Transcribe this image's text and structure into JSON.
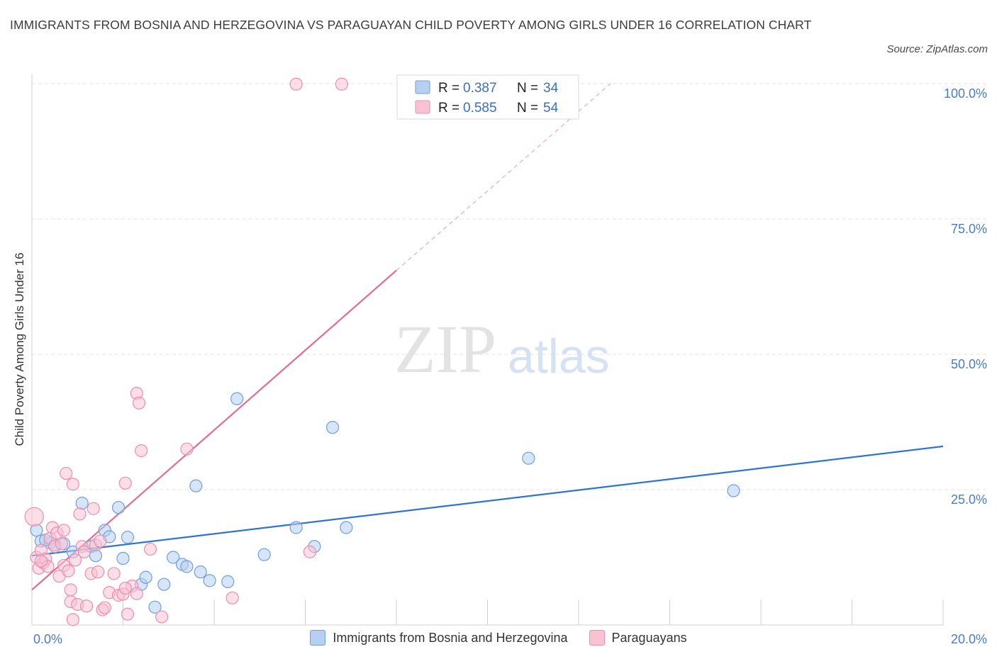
{
  "title": "IMMIGRANTS FROM BOSNIA AND HERZEGOVINA VS PARAGUAYAN CHILD POVERTY AMONG GIRLS UNDER 16 CORRELATION CHART",
  "source": "Source: ZipAtlas.com",
  "watermark": {
    "zip": "ZIP",
    "atlas": "atlas"
  },
  "colors": {
    "blue_fill": "#b7d0f2",
    "blue_stroke": "#6f9fdc",
    "blue_line": "#2f74d0",
    "pink_fill": "#f7c3d3",
    "pink_stroke": "#ea8fae",
    "pink_line": "#e56a93",
    "tick_text": "#4a7cc9",
    "grid": "#dfe3e8"
  },
  "stats": [
    {
      "r_label": "R =",
      "r_value": "0.387",
      "n_label": "N =",
      "n_value": "34"
    },
    {
      "r_label": "R =",
      "r_value": "0.585",
      "n_label": "N =",
      "n_value": "54"
    }
  ],
  "chart_data": {
    "type": "scatter",
    "title": "IMMIGRANTS FROM BOSNIA AND HERZEGOVINA VS PARAGUAYAN CHILD POVERTY AMONG GIRLS UNDER 16 CORRELATION CHART",
    "xlabel": "",
    "ylabel": "Child Poverty Among Girls Under 16",
    "xlim": [
      0,
      20
    ],
    "ylim": [
      0,
      100
    ],
    "x_ticks": [
      {
        "value": 0,
        "label": "0.0%"
      },
      {
        "value": 20,
        "label": "20.0%"
      }
    ],
    "y_ticks": [
      {
        "value": 25,
        "label": "25.0%"
      },
      {
        "value": 50,
        "label": "50.0%"
      },
      {
        "value": 75,
        "label": "75.0%"
      },
      {
        "value": 100,
        "label": "100.0%"
      }
    ],
    "grid": true,
    "legend_position": "bottom-center",
    "series": [
      {
        "name": "Immigrants from Bosnia and Herzegovina",
        "color": "#b7d0f2",
        "trend": {
          "x0": 0,
          "y0": 12.8,
          "x1": 20,
          "y1": 33.0,
          "dashed_to": null
        },
        "points": [
          [
            0.1,
            17.5
          ],
          [
            0.2,
            15.5
          ],
          [
            0.4,
            15.2
          ],
          [
            0.5,
            14.8
          ],
          [
            0.7,
            15.0
          ],
          [
            0.9,
            13.5
          ],
          [
            1.1,
            22.5
          ],
          [
            1.3,
            14.5
          ],
          [
            1.4,
            12.8
          ],
          [
            1.6,
            17.5
          ],
          [
            1.7,
            16.3
          ],
          [
            1.9,
            21.7
          ],
          [
            2.0,
            12.3
          ],
          [
            2.1,
            16.2
          ],
          [
            2.4,
            7.5
          ],
          [
            2.5,
            8.8
          ],
          [
            2.7,
            3.3
          ],
          [
            2.9,
            7.5
          ],
          [
            3.1,
            12.5
          ],
          [
            3.3,
            11.2
          ],
          [
            3.4,
            10.8
          ],
          [
            3.6,
            25.7
          ],
          [
            3.7,
            9.8
          ],
          [
            3.9,
            8.2
          ],
          [
            4.3,
            8.0
          ],
          [
            4.5,
            41.8
          ],
          [
            5.1,
            13.0
          ],
          [
            5.8,
            18.0
          ],
          [
            6.2,
            14.5
          ],
          [
            6.6,
            36.5
          ],
          [
            6.9,
            18.0
          ],
          [
            10.9,
            30.8
          ],
          [
            15.4,
            24.8
          ],
          [
            0.3,
            15.7
          ]
        ]
      },
      {
        "name": "Paraguayans",
        "color": "#f7c3d3",
        "trend": {
          "x0": 0,
          "y0": 6.5,
          "x1": 8.0,
          "y1": 65.5,
          "dashed_to": {
            "x": 12.7,
            "y": 100
          }
        },
        "points": [
          [
            0.05,
            20.0
          ],
          [
            0.1,
            12.5
          ],
          [
            0.15,
            10.5
          ],
          [
            0.2,
            13.8
          ],
          [
            0.25,
            11.5
          ],
          [
            0.3,
            12.2
          ],
          [
            0.35,
            10.8
          ],
          [
            0.4,
            16.0
          ],
          [
            0.45,
            18.0
          ],
          [
            0.5,
            14.5
          ],
          [
            0.55,
            17.0
          ],
          [
            0.6,
            9.0
          ],
          [
            0.65,
            15.0
          ],
          [
            0.7,
            17.5
          ],
          [
            0.75,
            28.0
          ],
          [
            0.7,
            11.0
          ],
          [
            0.8,
            10.0
          ],
          [
            0.85,
            6.5
          ],
          [
            0.85,
            4.3
          ],
          [
            0.9,
            26.0
          ],
          [
            0.95,
            12.0
          ],
          [
            1.0,
            3.8
          ],
          [
            1.05,
            20.5
          ],
          [
            1.1,
            14.5
          ],
          [
            1.15,
            13.5
          ],
          [
            1.2,
            3.5
          ],
          [
            1.3,
            9.5
          ],
          [
            1.35,
            21.5
          ],
          [
            1.4,
            14.8
          ],
          [
            1.45,
            9.8
          ],
          [
            1.5,
            15.5
          ],
          [
            1.55,
            2.8
          ],
          [
            1.6,
            3.2
          ],
          [
            1.7,
            6.0
          ],
          [
            1.8,
            9.5
          ],
          [
            1.9,
            5.5
          ],
          [
            2.0,
            5.7
          ],
          [
            2.05,
            26.2
          ],
          [
            2.1,
            2.0
          ],
          [
            2.2,
            7.2
          ],
          [
            2.3,
            5.8
          ],
          [
            2.3,
            42.8
          ],
          [
            2.35,
            41.0
          ],
          [
            2.4,
            32.2
          ],
          [
            2.6,
            14.0
          ],
          [
            2.85,
            1.5
          ],
          [
            3.4,
            32.5
          ],
          [
            4.4,
            5.0
          ],
          [
            6.1,
            13.5
          ],
          [
            5.8,
            99.9
          ],
          [
            6.8,
            99.9
          ],
          [
            0.2,
            11.8
          ],
          [
            0.9,
            1.0
          ],
          [
            2.05,
            6.8
          ]
        ]
      }
    ]
  }
}
